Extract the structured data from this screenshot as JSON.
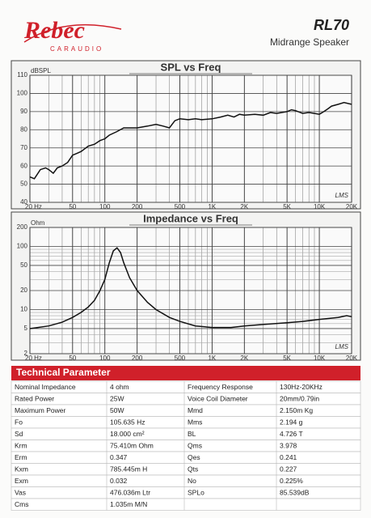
{
  "header": {
    "brand": "Rebec",
    "brand_sub": "CARAUDIO",
    "model": "RL70",
    "subtitle": "Midrange Speaker"
  },
  "chart_data": [
    {
      "type": "line",
      "title": "SPL vs Freq",
      "y_label": "dBSPL",
      "annotation": "LMS",
      "color": "#111111",
      "log_x": true,
      "log_y": false,
      "grid": true,
      "x": [
        20,
        22,
        25,
        28,
        30,
        33,
        36,
        40,
        45,
        50,
        55,
        60,
        70,
        80,
        90,
        100,
        110,
        130,
        150,
        200,
        250,
        300,
        350,
        400,
        450,
        500,
        600,
        700,
        800,
        1000,
        1200,
        1400,
        1600,
        1800,
        2000,
        2500,
        3000,
        3500,
        4000,
        5000,
        5500,
        6000,
        7000,
        8000,
        9000,
        10000,
        11000,
        12000,
        13000,
        15000,
        17000,
        20000
      ],
      "values": [
        54,
        53,
        58,
        59,
        58,
        56,
        59,
        60,
        62,
        66,
        67,
        68,
        71,
        72,
        74,
        75,
        77,
        79,
        81,
        81,
        82,
        83,
        82,
        81,
        85,
        86,
        85.5,
        86,
        85.5,
        86,
        87,
        88,
        87,
        88.5,
        88,
        88.5,
        88,
        89.5,
        89,
        90,
        91,
        90.5,
        89,
        89.5,
        89,
        88.5,
        90,
        91.5,
        93,
        94,
        95,
        94
      ],
      "xlim": [
        20,
        20000
      ],
      "ylim": [
        40,
        110
      ],
      "xticks": [
        {
          "value": 20,
          "label": "20 Hz"
        },
        50,
        100,
        200,
        500,
        {
          "value": 1000,
          "label": "1K"
        },
        {
          "value": 2000,
          "label": "2K"
        },
        {
          "value": 5000,
          "label": "5K"
        },
        {
          "value": 10000,
          "label": "10K"
        },
        {
          "value": 20000,
          "label": "20K"
        }
      ],
      "xminorticks": [
        30,
        40,
        60,
        70,
        80,
        90,
        300,
        400,
        600,
        700,
        800,
        900,
        3000,
        4000,
        6000,
        7000,
        8000,
        9000
      ],
      "yticks": [
        40,
        50,
        60,
        70,
        80,
        90,
        100,
        110
      ],
      "yminorticks": []
    },
    {
      "type": "line",
      "title": "Impedance vs Freq",
      "y_label": "Ohm",
      "annotation": "LMS",
      "color": "#111111",
      "log_x": true,
      "log_y": true,
      "grid": true,
      "x": [
        20,
        30,
        40,
        50,
        60,
        70,
        80,
        90,
        100,
        110,
        120,
        130,
        140,
        150,
        170,
        200,
        250,
        300,
        400,
        500,
        700,
        1000,
        1500,
        2000,
        3000,
        5000,
        7000,
        10000,
        15000,
        18000,
        20000
      ],
      "values": [
        5,
        5.5,
        6.3,
        7.5,
        9,
        11,
        14,
        20,
        30,
        55,
        85,
        95,
        80,
        55,
        32,
        20,
        13,
        10,
        7.5,
        6.5,
        5.5,
        5.2,
        5.2,
        5.5,
        5.8,
        6.2,
        6.5,
        7,
        7.5,
        8,
        7.7
      ],
      "xlim": [
        20,
        20000
      ],
      "ylim": [
        2,
        200
      ],
      "xticks": [
        {
          "value": 20,
          "label": "20 Hz"
        },
        50,
        100,
        200,
        500,
        {
          "value": 1000,
          "label": "1K"
        },
        {
          "value": 2000,
          "label": "2K"
        },
        {
          "value": 5000,
          "label": "5K"
        },
        {
          "value": 10000,
          "label": "10K"
        },
        {
          "value": 20000,
          "label": "20K"
        }
      ],
      "xminorticks": [
        30,
        40,
        60,
        70,
        80,
        90,
        300,
        400,
        600,
        700,
        800,
        900,
        3000,
        4000,
        6000,
        7000,
        8000,
        9000
      ],
      "yticks": [
        2,
        5,
        10,
        20,
        50,
        100,
        200
      ],
      "yminorticks": [
        3,
        4,
        6,
        7,
        8,
        9,
        30,
        40,
        60,
        70,
        80,
        90
      ]
    }
  ],
  "table": {
    "title": "Technical Parameter",
    "rows": [
      [
        "Nominal Impedance",
        "4 ohm",
        "Frequency Response",
        "130Hz-20KHz"
      ],
      [
        "Rated Power",
        "25W",
        "Voice Coil Diameter",
        "20mm/0.79in"
      ],
      [
        "Maximum Power",
        "50W",
        "Mmd",
        "2.150m Kg"
      ],
      [
        "Fo",
        "105.635 Hz",
        "Mms",
        "2.194 g"
      ],
      [
        "Sd",
        "18.000 cm²",
        "BL",
        "4.726 T"
      ],
      [
        "Krm",
        "75.410m Ohm",
        "Qms",
        "3.978"
      ],
      [
        "Erm",
        "0.347",
        "Qes",
        "0.241"
      ],
      [
        "Kxm",
        "785.445m H",
        "Qts",
        "0.227"
      ],
      [
        "Exm",
        "0.032",
        "No",
        "0.225%"
      ],
      [
        "Vas",
        "476.036m Ltr",
        "SPLo",
        "85.539dB"
      ],
      [
        "Cms",
        "1.035m M/N"
      ]
    ]
  }
}
